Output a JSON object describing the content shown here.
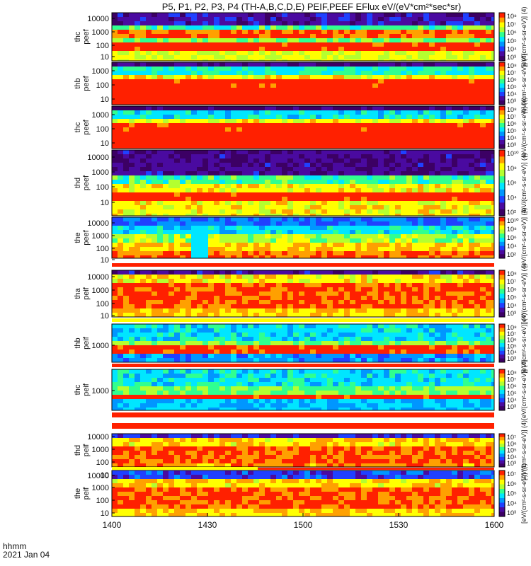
{
  "title": "P5, P1, P2, P3, P4 (TH-A,B,C,D,E) PEIF,PEEF EFlux eV/(eV*cm²*sec*sr)",
  "footer": {
    "line1": "hhmm",
    "line2": "2021 Jan 04"
  },
  "x_ticks": [
    "1400",
    "1430",
    "1500",
    "1530",
    "1600"
  ],
  "colormap": [
    "#3c0064",
    "#4a0aa0",
    "#2040ff",
    "#0096ff",
    "#00e6ff",
    "#30ff90",
    "#b4ff30",
    "#ffff00",
    "#ffa000",
    "#ff2000"
  ],
  "chart_data": {
    "type": "heatmap",
    "description_of_axes": "energy spectrograms vs. time",
    "x_range": [
      "1400",
      "1600"
    ],
    "panels": [
      {
        "ylabel": [
          "thc",
          "peef"
        ],
        "yticks": [
          "10000",
          "1000",
          "100",
          "10"
        ],
        "cbar_ticks": [
          "10⁸",
          "10⁷",
          "10⁶",
          "10⁵",
          "10⁴",
          "10³"
        ],
        "cbar_label": "[eV/(cm²-s-sr-eV)] (4)"
      },
      {
        "ylabel": [
          "thb",
          "peef"
        ],
        "yticks": [
          "1000",
          "100",
          "10"
        ],
        "cbar_ticks": [
          "10⁸",
          "10⁷",
          "10⁶",
          "10⁵",
          "10⁴",
          "10³"
        ],
        "cbar_label": "[eV/(cm²-s-sr-eV)] (4)"
      },
      {
        "ylabel": [
          "thc",
          "peef"
        ],
        "yticks": [
          "1000",
          "100",
          "10"
        ],
        "cbar_ticks": [
          "10⁸",
          "10⁷",
          "10⁶",
          "10⁵",
          "10⁴",
          "10³"
        ],
        "cbar_label": "[eV/(cm²-s-sr-eV)] (4)"
      },
      {
        "ylabel": [
          "thd",
          "peef"
        ],
        "yticks": [
          "10000",
          "1000",
          "100",
          "10"
        ],
        "cbar_ticks": [
          "10¹⁰",
          "10⁸",
          "10⁶",
          "10⁴",
          "10²"
        ],
        "cbar_label": "[eV/(cm²-s-sr-eV)] (4)"
      },
      {
        "ylabel": [
          "the",
          "peef"
        ],
        "yticks": [
          "10000",
          "1000",
          "100",
          "10"
        ],
        "cbar_ticks": [
          "10¹⁰",
          "10⁸",
          "10⁶",
          "10⁴",
          "10²"
        ],
        "cbar_label": "[eV/(cm²-s-sr-eV)] (4)"
      },
      {
        "ylabel": [
          "tha",
          "peif"
        ],
        "yticks": [
          "10000",
          "1000",
          "100",
          "10"
        ],
        "cbar_ticks": [
          "10⁸",
          "10⁷",
          "10⁶",
          "10⁵",
          "10⁴",
          "10³"
        ],
        "cbar_label": "[eV/(cm²-s-sr-eV)] (4)"
      },
      {
        "ylabel": [
          "thb",
          "peif"
        ],
        "yticks": [
          "1000"
        ],
        "cbar_ticks": [
          "10⁸",
          "10⁷",
          "10⁶",
          "10⁵",
          "10⁴",
          "10³"
        ],
        "cbar_label": "[eV/(cm²-s-sr-eV)] (4)"
      },
      {
        "ylabel": [
          "thc",
          "peif"
        ],
        "yticks": [
          "1000"
        ],
        "cbar_ticks": [
          "10⁸",
          "10⁷",
          "10⁶",
          "10⁵",
          "10⁴",
          "10³"
        ],
        "cbar_label": "[eV/(cm²-s-sr-eV)] (4)"
      },
      {
        "ylabel": [
          "thd",
          "peif"
        ],
        "yticks": [
          "10000",
          "1000",
          "100",
          "10"
        ],
        "cbar_ticks": [
          "10⁷",
          "10⁶",
          "10⁵",
          "10⁴",
          "10³"
        ],
        "cbar_label": "[eV/(cm²-s-sr-eV)] (4)"
      },
      {
        "ylabel": [
          "the",
          "peif"
        ],
        "yticks": [
          "10000",
          "1000",
          "100",
          "10"
        ],
        "cbar_ticks": [
          "10⁷",
          "10⁶",
          "10⁵",
          "10⁴",
          "10³"
        ],
        "cbar_label": "[eV/(cm²-s-sr-eV)] (4)"
      }
    ]
  }
}
